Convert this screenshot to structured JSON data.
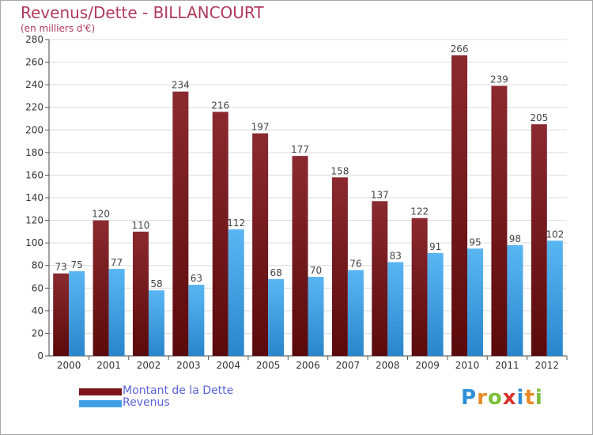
{
  "title": "Revenus/Dette - BILLANCOURT",
  "subtitle": "(en milliers d'€)",
  "colors": {
    "title": "#b03a5b",
    "legend_text": "#5b63d8",
    "dette": "#7c1518",
    "revenus": "#3fa0e4"
  },
  "chart_data": {
    "type": "bar",
    "categories": [
      "2000",
      "2001",
      "2002",
      "2003",
      "2004",
      "2005",
      "2006",
      "2007",
      "2008",
      "2009",
      "2010",
      "2011",
      "2012"
    ],
    "series": [
      {
        "name": "Montant de la Dette",
        "values": [
          73,
          120,
          110,
          234,
          216,
          197,
          177,
          158,
          137,
          122,
          266,
          239,
          205
        ]
      },
      {
        "name": "Revenus",
        "values": [
          75,
          77,
          58,
          63,
          112,
          68,
          70,
          76,
          83,
          91,
          95,
          98,
          102
        ]
      }
    ],
    "ylim": [
      0,
      280
    ],
    "yticks": [
      0,
      20,
      40,
      60,
      80,
      100,
      120,
      140,
      160,
      180,
      200,
      220,
      240,
      260,
      280
    ],
    "grid": true,
    "legend_position": "bottom-left"
  },
  "legend": [
    {
      "label": "Montant de la Dette"
    },
    {
      "label": "Revenus"
    }
  ],
  "logo": {
    "letters": [
      "P",
      "r",
      "o",
      "x",
      "i",
      "t",
      "i"
    ],
    "colors": [
      "#2e8fd6",
      "#e98a24",
      "#7bbf3a",
      "#d8322e",
      "#2e8fd6",
      "#e98a24",
      "#7bbf3a"
    ]
  }
}
